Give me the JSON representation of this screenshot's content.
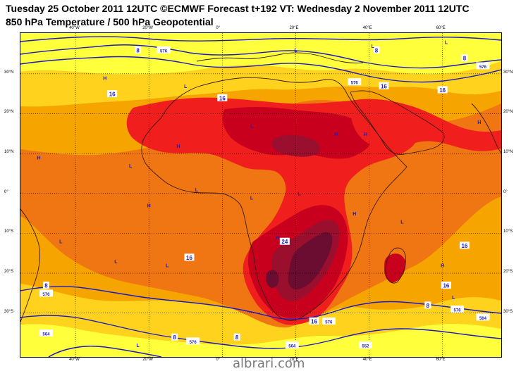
{
  "header": {
    "line1": "Tuesday 25 October 2011 12UTC ©ECMWF Forecast t+192 VT: Wednesday 2 November 2011 12UTC",
    "line2": "850 hPa Temperature / 500 hPa Geopotential"
  },
  "axes": {
    "latitudes": [
      "30°N",
      "20°N",
      "10°N",
      "0°",
      "10°S",
      "20°S",
      "30°S"
    ],
    "longitudes": [
      "40°W",
      "20°W",
      "0°",
      "20°E",
      "40°E",
      "60°E"
    ]
  },
  "legend_colors": {
    "t_lt_8": "#ffff3c",
    "t_8_12": "#ffd21e",
    "t_12_16": "#f6a400",
    "t_16_20": "#ef7612",
    "t_20_24": "#f11e1e",
    "t_24_26": "#c8001e",
    "t_26_28": "#9a0f2e",
    "t_gt_28": "#6b0c31",
    "geopotential_contour": "#1c1cbe"
  },
  "pressure_centers": [
    {
      "label": "H",
      "lon": 36,
      "lat": -5
    },
    {
      "label": "H",
      "lon": -32,
      "lat": 29
    },
    {
      "label": "H",
      "lon": -50,
      "lat": 9
    },
    {
      "label": "H",
      "lon": -20,
      "lat": -3
    },
    {
      "label": "H",
      "lon": -12,
      "lat": 12
    },
    {
      "label": "H",
      "lon": 31,
      "lat": 15
    },
    {
      "label": "H",
      "lon": 15,
      "lat": -11
    },
    {
      "label": "H",
      "lon": 60,
      "lat": -18
    },
    {
      "label": "H",
      "lon": 70,
      "lat": 18
    },
    {
      "label": "H",
      "lon": 39,
      "lat": 15
    },
    {
      "label": "L",
      "lon": 20,
      "lat": 36
    },
    {
      "label": "L",
      "lon": 41,
      "lat": 37
    },
    {
      "label": "L",
      "lon": 61,
      "lat": 38
    },
    {
      "label": "L",
      "lon": -10,
      "lat": 27
    },
    {
      "label": "L",
      "lon": -25,
      "lat": 7
    },
    {
      "label": "L",
      "lon": -7,
      "lat": 1
    },
    {
      "label": "L",
      "lon": 8,
      "lat": -1
    },
    {
      "label": "L",
      "lon": 21,
      "lat": 0
    },
    {
      "label": "L",
      "lon": 8,
      "lat": 17
    },
    {
      "label": "L",
      "lon": -44,
      "lat": -12
    },
    {
      "label": "L",
      "lon": -29,
      "lat": -17
    },
    {
      "label": "L",
      "lon": -15,
      "lat": -18
    },
    {
      "label": "L",
      "lon": 49,
      "lat": -7
    },
    {
      "label": "L",
      "lon": -23,
      "lat": -38
    },
    {
      "label": "L",
      "lon": 63,
      "lat": -26
    }
  ],
  "contour_labels": [
    {
      "text": "8",
      "lon": -23,
      "lat": 36
    },
    {
      "text": "576",
      "lon": -16,
      "lat": 36
    },
    {
      "text": "16",
      "lon": -30,
      "lat": 25
    },
    {
      "text": "16",
      "lon": 0,
      "lat": 24
    },
    {
      "text": "16",
      "lon": 44,
      "lat": 27
    },
    {
      "text": "16",
      "lon": 60,
      "lat": 26
    },
    {
      "text": "576",
      "lon": 36,
      "lat": 28
    },
    {
      "text": "8",
      "lon": 42,
      "lat": 36
    },
    {
      "text": "576",
      "lon": 71,
      "lat": 32
    },
    {
      "text": "8",
      "lon": 66,
      "lat": 34
    },
    {
      "text": "24",
      "lon": 17,
      "lat": -12
    },
    {
      "text": "16",
      "lon": -9,
      "lat": -16
    },
    {
      "text": "16",
      "lon": 61,
      "lat": -23
    },
    {
      "text": "16",
      "lon": 66,
      "lat": -13
    },
    {
      "text": "8",
      "lon": -48,
      "lat": -23
    },
    {
      "text": "576",
      "lon": -48,
      "lat": -25
    },
    {
      "text": "564",
      "lon": -48,
      "lat": -35
    },
    {
      "text": "8",
      "lon": -13,
      "lat": -36
    },
    {
      "text": "576",
      "lon": -8,
      "lat": -37
    },
    {
      "text": "16",
      "lon": 25,
      "lat": -32
    },
    {
      "text": "576",
      "lon": 29,
      "lat": -32
    },
    {
      "text": "8",
      "lon": 4,
      "lat": -36
    },
    {
      "text": "8",
      "lon": 56,
      "lat": -28
    },
    {
      "text": "576",
      "lon": 64,
      "lat": -29
    },
    {
      "text": "564",
      "lon": 71,
      "lat": -31
    },
    {
      "text": "564",
      "lon": 19,
      "lat": -38
    },
    {
      "text": "552",
      "lon": 39,
      "lat": -38
    }
  ],
  "watermark": "albrari.com"
}
